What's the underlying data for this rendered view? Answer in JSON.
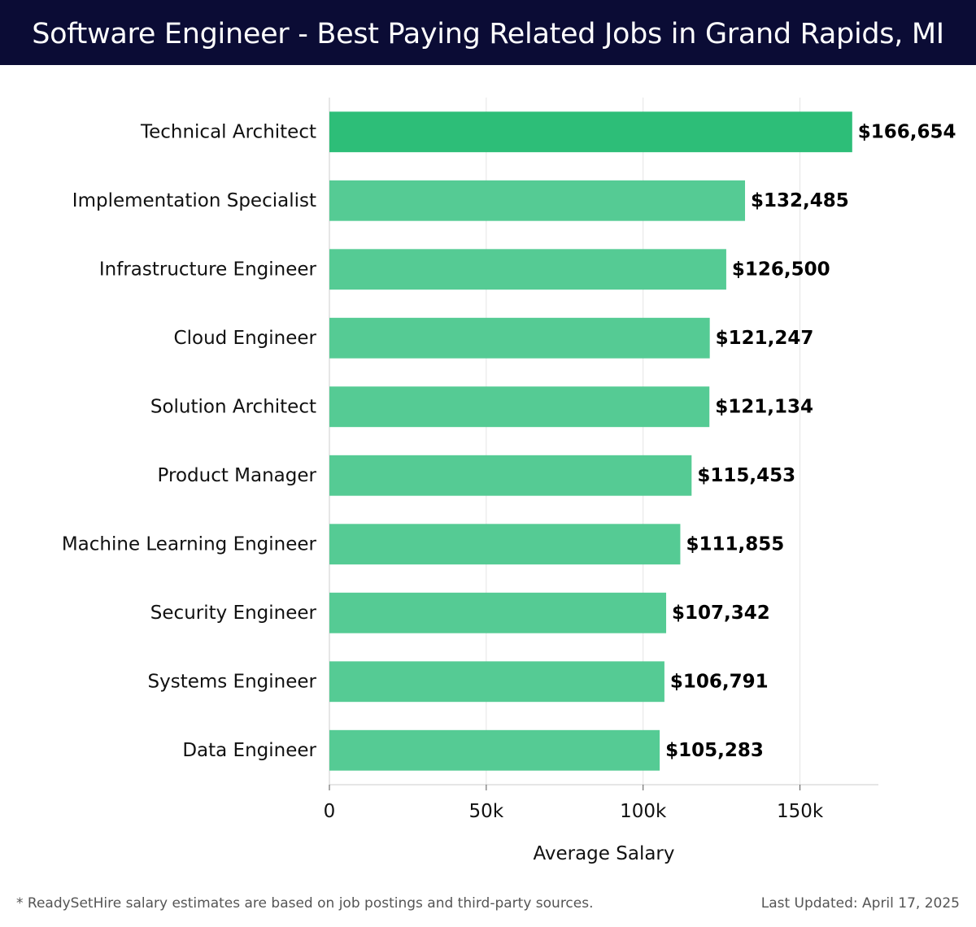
{
  "header": {
    "title": "Software Engineer - Best Paying Related Jobs in Grand Rapids, MI"
  },
  "chart_data": {
    "type": "bar",
    "orientation": "horizontal",
    "categories": [
      "Technical Architect",
      "Implementation Specialist",
      "Infrastructure Engineer",
      "Cloud Engineer",
      "Solution Architect",
      "Product Manager",
      "Machine Learning Engineer",
      "Security Engineer",
      "Systems Engineer",
      "Data Engineer"
    ],
    "values": [
      166654,
      132485,
      126500,
      121247,
      121134,
      115453,
      111855,
      107342,
      106791,
      105283
    ],
    "value_labels": [
      "$166,654",
      "$132,485",
      "$126,500",
      "$121,247",
      "$121,134",
      "$115,453",
      "$111,855",
      "$107,342",
      "$106,791",
      "$105,283"
    ],
    "xlabel": "Average Salary",
    "xlim": [
      0,
      175000
    ],
    "xticks": [
      0,
      50000,
      100000,
      150000
    ],
    "xtick_labels": [
      "0",
      "50k",
      "100k",
      "150k"
    ],
    "grid": "vertical",
    "colors": {
      "highlight": "#2dbe78",
      "bar": "#55cb94",
      "grid": "#e4e4e4",
      "axis": "#cccccc"
    }
  },
  "footer": {
    "note": "* ReadySetHire salary estimates are based on job postings and third-party sources.",
    "updated": "Last Updated: April 17, 2025"
  }
}
